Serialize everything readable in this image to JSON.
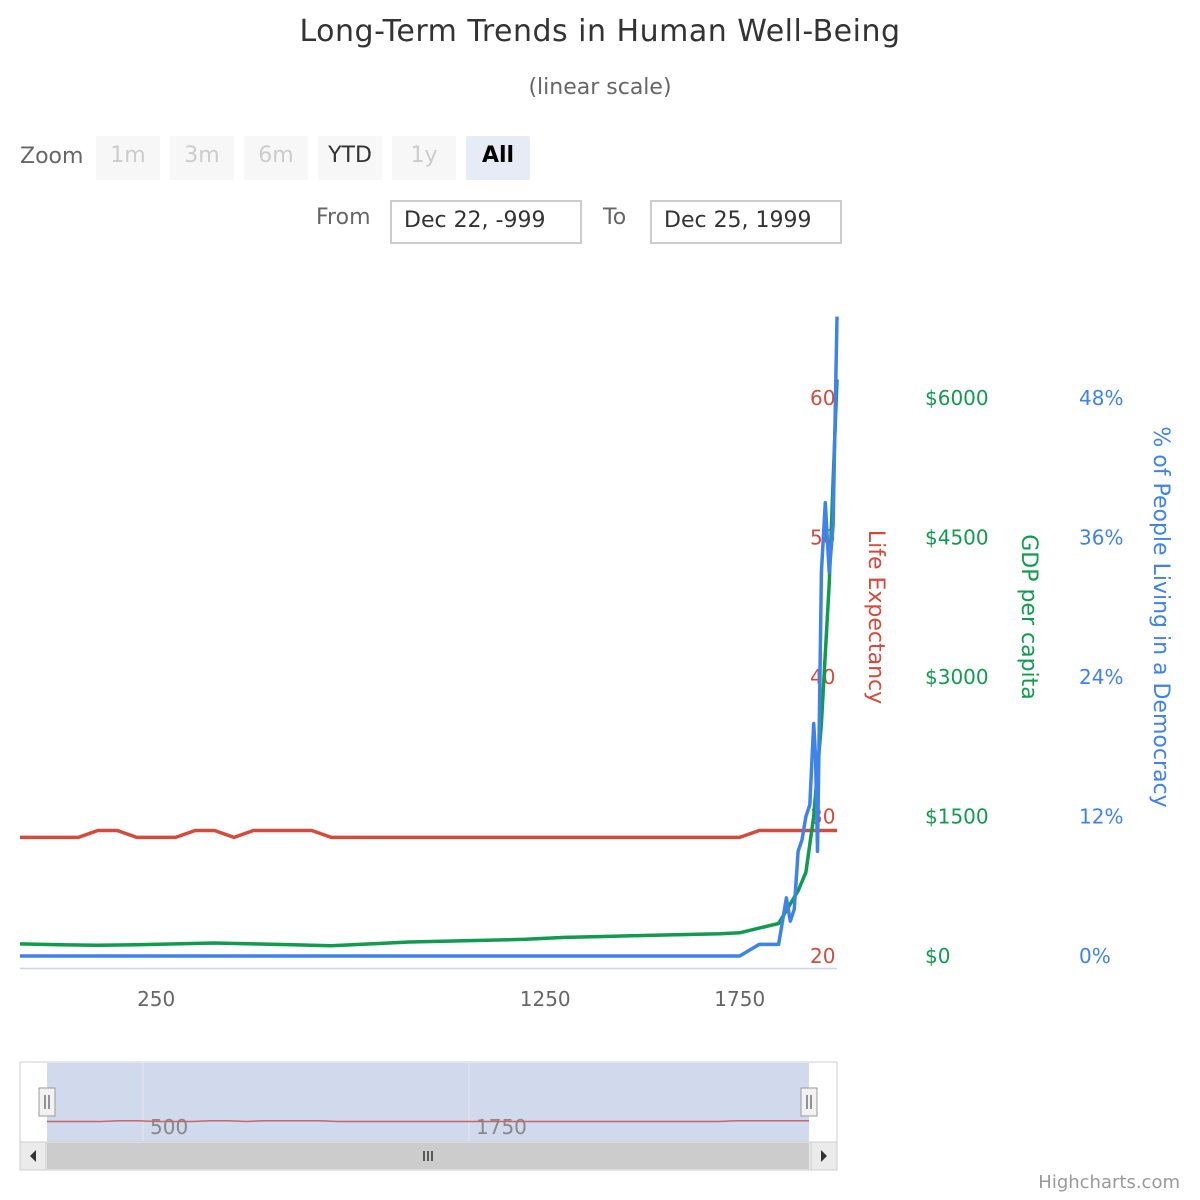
{
  "title": "Long-Term Trends in Human Well-Being",
  "subtitle": "(linear scale)",
  "range_selector": {
    "zoom_label": "Zoom",
    "buttons": [
      {
        "label": "1m",
        "state": "disabled"
      },
      {
        "label": "3m",
        "state": "disabled"
      },
      {
        "label": "6m",
        "state": "disabled"
      },
      {
        "label": "YTD",
        "state": "enabled"
      },
      {
        "label": "1y",
        "state": "disabled"
      },
      {
        "label": "All",
        "state": "active"
      }
    ],
    "from_label": "From",
    "from_value": "Dec 22, -999",
    "to_label": "To",
    "to_value": "Dec 25, 1999"
  },
  "credits": "Highcharts.com",
  "colors": {
    "life": "#d44a3b",
    "gdp": "#109b4f",
    "democracy": "#3f83e8"
  },
  "chart_data": {
    "type": "line",
    "xlim": [
      -100,
      2000
    ],
    "x_ticks": [
      250,
      1250,
      1750
    ],
    "axes": [
      {
        "name": "Life Expectancy",
        "ticks": [
          20,
          30,
          40,
          50,
          60
        ],
        "tick_labels": [
          "20",
          "30",
          "40",
          "50",
          "60"
        ],
        "range": [
          20,
          60
        ],
        "color": "#d44a3b"
      },
      {
        "name": "GDP per capita",
        "ticks": [
          0,
          1500,
          3000,
          4500,
          6000
        ],
        "tick_labels": [
          "$0",
          "$1500",
          "$3000",
          "$4500",
          "$6000"
        ],
        "range": [
          0,
          6000
        ],
        "color": "#109b4f"
      },
      {
        "name": "% of People Living in a Democracy",
        "ticks": [
          0,
          12,
          24,
          36,
          48
        ],
        "tick_labels": [
          "0%",
          "12%",
          "24%",
          "36%",
          "48%"
        ],
        "range": [
          0,
          48
        ],
        "color": "#3f83e8"
      }
    ],
    "series": [
      {
        "name": "Life Expectancy",
        "axis": 0,
        "x": [
          -100,
          50,
          100,
          150,
          200,
          300,
          350,
          400,
          450,
          500,
          550,
          600,
          650,
          700,
          750,
          800,
          850,
          900,
          950,
          1000,
          1050,
          1100,
          1150,
          1200,
          1250,
          1300,
          1350,
          1400,
          1450,
          1500,
          1550,
          1600,
          1650,
          1700,
          1750,
          1800,
          1850,
          1900,
          1950,
          1960,
          1970,
          1980,
          1990,
          2000
        ],
        "values": [
          28.5,
          28.5,
          29,
          29,
          28.5,
          28.5,
          29,
          29,
          28.5,
          29,
          29,
          29,
          29,
          28.5,
          28.5,
          28.5,
          28.5,
          28.5,
          28.5,
          28.5,
          28.5,
          28.5,
          28.5,
          28.5,
          28.5,
          28.5,
          28.5,
          28.5,
          28.5,
          28.5,
          28.5,
          28.5,
          28.5,
          28.5,
          28.5,
          29,
          29,
          29,
          29,
          29,
          29,
          29,
          29,
          29
        ]
      },
      {
        "name": "GDP per capita",
        "axis": 1,
        "x": [
          -100,
          0,
          100,
          200,
          300,
          400,
          500,
          600,
          700,
          800,
          900,
          1000,
          1100,
          1200,
          1300,
          1400,
          1500,
          1600,
          1700,
          1750,
          1800,
          1850,
          1900,
          1920,
          1940,
          1960,
          1980,
          2000
        ],
        "values": [
          130,
          120,
          115,
          120,
          130,
          140,
          130,
          120,
          110,
          130,
          150,
          160,
          170,
          180,
          200,
          210,
          220,
          230,
          240,
          250,
          300,
          350,
          700,
          900,
          1500,
          2500,
          4000,
          6200
        ]
      },
      {
        "name": "% of People Living in a Democracy",
        "axis": 2,
        "x": [
          -100,
          1700,
          1750,
          1800,
          1850,
          1870,
          1880,
          1890,
          1900,
          1910,
          1920,
          1930,
          1940,
          1945,
          1950,
          1960,
          1970,
          1980,
          1990,
          2000
        ],
        "values": [
          0,
          0,
          0,
          1,
          1,
          5,
          3,
          4,
          9,
          10,
          12,
          13,
          20,
          17,
          9,
          33,
          39,
          33,
          37,
          55
        ]
      }
    ]
  }
}
